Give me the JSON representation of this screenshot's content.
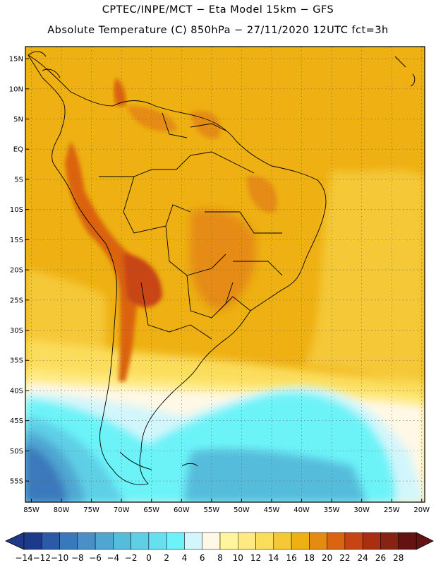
{
  "header": {
    "line1": "CPTEC/INPE/MCT −   Eta Model 15km − GFS",
    "line2": "Absolute Temperature (C) 850hPa − 27/11/2020 12UTC fct=3h"
  },
  "axes": {
    "lat_labels": [
      "15N",
      "10N",
      "5N",
      "EQ",
      "5S",
      "10S",
      "15S",
      "20S",
      "25S",
      "30S",
      "35S",
      "40S",
      "45S",
      "50S",
      "55S"
    ],
    "lat_values": [
      15,
      10,
      5,
      0,
      -5,
      -10,
      -15,
      -20,
      -25,
      -30,
      -35,
      -40,
      -45,
      -50,
      -55
    ],
    "lon_labels": [
      "85W",
      "80W",
      "75W",
      "70W",
      "65W",
      "60W",
      "55W",
      "50W",
      "45W",
      "40W",
      "35W",
      "30W",
      "25W",
      "20W"
    ],
    "lon_values": [
      -85,
      -80,
      -75,
      -70,
      -65,
      -60,
      -55,
      -50,
      -45,
      -40,
      -35,
      -30,
      -25,
      -20
    ]
  },
  "colorbar": {
    "labels": [
      "−14",
      "−12",
      "−10",
      "−8",
      "−6",
      "−4",
      "−2",
      "0",
      "2",
      "4",
      "6",
      "8",
      "10",
      "12",
      "14",
      "16",
      "18",
      "20",
      "22",
      "24",
      "26",
      "28"
    ],
    "colors": [
      "#1d3a8a",
      "#2a5aa8",
      "#3a78bc",
      "#4a90c8",
      "#4fa6d2",
      "#56bcdc",
      "#5fcfe6",
      "#66e0ef",
      "#6cf3f8",
      "#d2f6fb",
      "#fff8e6",
      "#fff59c",
      "#feea80",
      "#fbdd5c",
      "#f5c838",
      "#eeb012",
      "#e58b14",
      "#db6410",
      "#c84412",
      "#a92f10",
      "#882212",
      "#651212"
    ],
    "under_color": "#1d3a8a",
    "over_color": "#651212"
  },
  "colors": {
    "ocean_warm": "#eeb012",
    "ocean_mid": "#f5c838",
    "land_hot": "#e58b14",
    "andes": "#db6410",
    "cold_water": "#6cf3f8",
    "cold_deep": "#4fa6d2"
  }
}
